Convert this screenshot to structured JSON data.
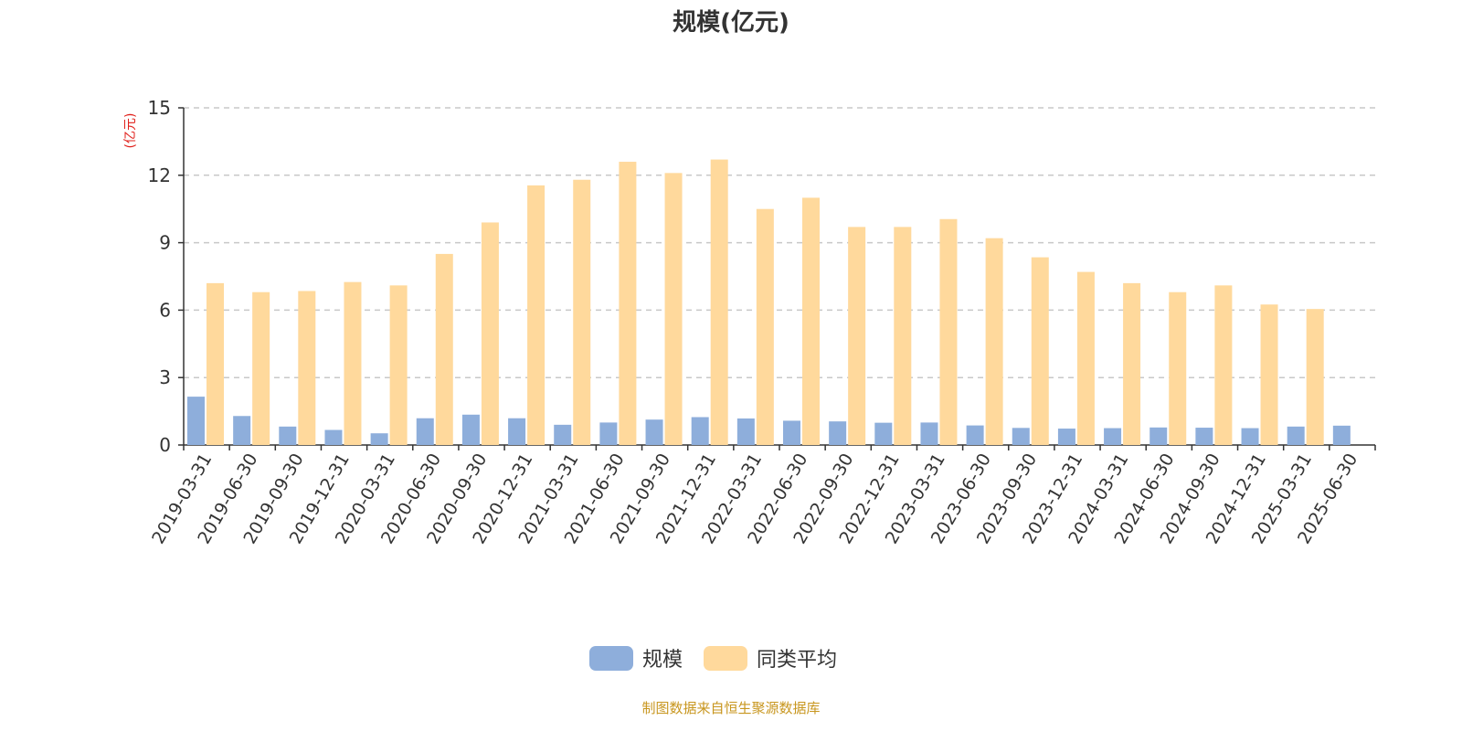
{
  "chart_data": {
    "type": "bar",
    "title": "规模(亿元)",
    "ylabel": "(亿元)",
    "xlabel": "",
    "ylim": [
      0,
      15
    ],
    "yticks": [
      0,
      3,
      6,
      9,
      12,
      15
    ],
    "grid": true,
    "legend_position": "bottom",
    "categories": [
      "2019-03-31",
      "2019-06-30",
      "2019-09-30",
      "2019-12-31",
      "2020-03-31",
      "2020-06-30",
      "2020-09-30",
      "2020-12-31",
      "2021-03-31",
      "2021-06-30",
      "2021-09-30",
      "2021-12-31",
      "2022-03-31",
      "2022-06-30",
      "2022-09-30",
      "2022-12-31",
      "2023-03-31",
      "2023-06-30",
      "2023-09-30",
      "2023-12-31",
      "2024-03-31",
      "2024-06-30",
      "2024-09-30",
      "2024-12-31",
      "2025-03-31",
      "2025-06-30"
    ],
    "series": [
      {
        "name": "规模",
        "color": "#8eaedb",
        "values": [
          2.15,
          1.29,
          0.82,
          0.67,
          0.52,
          1.19,
          1.35,
          1.19,
          0.9,
          1.0,
          1.13,
          1.24,
          1.18,
          1.08,
          1.05,
          0.99,
          1.0,
          0.87,
          0.76,
          0.73,
          0.75,
          0.78,
          0.77,
          0.75,
          0.82,
          0.86
        ]
      },
      {
        "name": "同类平均",
        "color": "#ffd99c",
        "values": [
          7.2,
          6.8,
          6.85,
          7.25,
          7.1,
          8.5,
          9.9,
          11.55,
          11.8,
          12.6,
          12.1,
          12.7,
          10.5,
          11.0,
          9.7,
          9.7,
          10.05,
          9.2,
          8.35,
          7.7,
          7.2,
          6.8,
          7.1,
          6.25,
          6.05,
          null
        ]
      }
    ]
  },
  "footer": "制图数据来自恒生聚源数据库"
}
